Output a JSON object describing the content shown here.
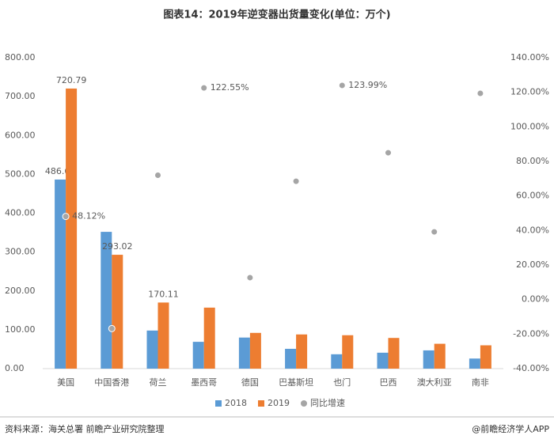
{
  "chart_data": {
    "type": "bar",
    "title": "图表14：2019年逆变器出货量变化(单位：万个)",
    "source": "资料来源：海关总署 前瞻产业研究院整理",
    "brand": "@前瞻经济学人APP",
    "categories": [
      "美国",
      "中国香港",
      "荷兰",
      "墨西哥",
      "德国",
      "巴基斯坦",
      "也门",
      "巴西",
      "澳大利亚",
      "南非"
    ],
    "series": [
      {
        "name": "2018",
        "color": "#5b9bd5",
        "values": [
          486.62,
          352,
          98,
          69,
          80,
          51,
          37,
          41,
          47,
          26
        ],
        "value_labels": [
          "486.62",
          null,
          null,
          null,
          null,
          null,
          null,
          null,
          null,
          null
        ]
      },
      {
        "name": "2019",
        "color": "#ed7d31",
        "values": [
          720.79,
          293.02,
          170.11,
          157,
          92,
          88,
          86,
          79,
          64,
          60
        ],
        "value_labels": [
          "720.79",
          "293.02",
          "170.11",
          null,
          null,
          null,
          null,
          null,
          null,
          null
        ]
      },
      {
        "name": "同比增速",
        "color": "#a5a5a5",
        "axis": "y2",
        "type": "scatter",
        "values": [
          48.12,
          -16.8,
          72,
          122.55,
          12.7,
          68.5,
          123.99,
          85,
          39.2,
          119.4
        ],
        "value_labels": [
          "48.12%",
          null,
          null,
          "122.55%",
          null,
          null,
          "123.99%",
          null,
          null,
          null
        ]
      }
    ],
    "ylim": [
      0,
      800
    ],
    "yticks": [
      {
        "value": 0,
        "label": "0.00"
      },
      {
        "value": 100,
        "label": "100.00"
      },
      {
        "value": 200,
        "label": "200.00"
      },
      {
        "value": 300,
        "label": "300.00"
      },
      {
        "value": 400,
        "label": "400.00"
      },
      {
        "value": 500,
        "label": "500.00"
      },
      {
        "value": 600,
        "label": "600.00"
      },
      {
        "value": 700,
        "label": "700.00"
      },
      {
        "value": 800,
        "label": "800.00"
      }
    ],
    "y2lim": [
      -40,
      140
    ],
    "y2ticks": [
      {
        "value": -40,
        "label": "-40.00%"
      },
      {
        "value": -20,
        "label": "-20.00%"
      },
      {
        "value": 0,
        "label": "0.00%"
      },
      {
        "value": 20,
        "label": "20.00%"
      },
      {
        "value": 40,
        "label": "40.00%"
      },
      {
        "value": 60,
        "label": "60.00%"
      },
      {
        "value": 80,
        "label": "80.00%"
      },
      {
        "value": 100,
        "label": "100.00%"
      },
      {
        "value": 120,
        "label": "120.00%"
      },
      {
        "value": 140,
        "label": "140.00%"
      }
    ],
    "legend": "bottom"
  }
}
